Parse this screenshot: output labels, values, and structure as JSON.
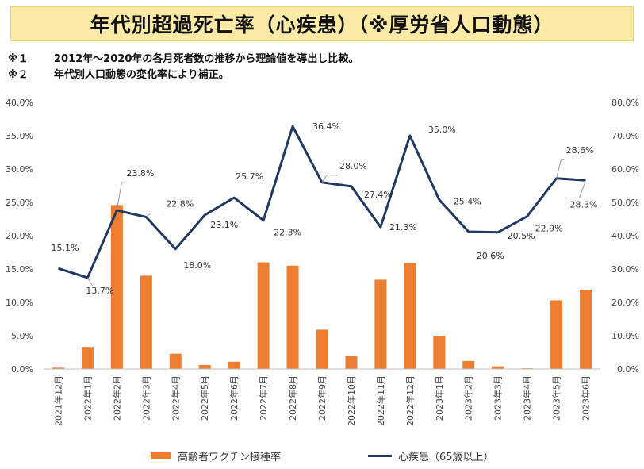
{
  "header": {
    "title": "年代別超過死亡率（心疾患）（※厚労省人口動態）",
    "notes": [
      {
        "mark": "※１",
        "text": "2012年～2020年の各月死者数の推移から理論値を導出し比較。"
      },
      {
        "mark": "※２",
        "text": "年代別人口動態の変化率により補正。"
      }
    ]
  },
  "chart_data": {
    "type": "bar",
    "categories": [
      "2021年12月",
      "2022年1月",
      "2022年2月",
      "2022年3月",
      "2022年4月",
      "2022年5月",
      "2022年6月",
      "2022年7月",
      "2022年8月",
      "2022年9月",
      "2022年10月",
      "2022年11月",
      "2022年12月",
      "2023年1月",
      "2023年2月",
      "2023年3月",
      "2023年4月",
      "2023年5月",
      "2023年6月"
    ],
    "series": [
      {
        "name": "高齢者ワクチン接種率",
        "type": "bar",
        "axis": "left",
        "color": "#ed7d31",
        "values": [
          0.2,
          3.3,
          24.6,
          14.0,
          2.3,
          0.6,
          1.1,
          16.0,
          15.5,
          5.9,
          2.0,
          13.4,
          15.9,
          5.0,
          1.2,
          0.4,
          0.1,
          10.3,
          11.9
        ]
      },
      {
        "name": "心疾患（65歳以上）",
        "type": "line",
        "axis": "right",
        "color": "#203864",
        "values": [
          30.2,
          27.4,
          47.6,
          45.6,
          36.0,
          46.2,
          51.4,
          44.6,
          72.8,
          56.0,
          54.8,
          42.6,
          70.0,
          50.8,
          41.2,
          41.0,
          45.8,
          57.2,
          56.6
        ]
      }
    ],
    "data_labels": [
      "15.1%",
      "13.7%",
      "23.8%",
      "22.8%",
      "18.0%",
      "23.1%",
      "25.7%",
      "22.3%",
      "36.4%",
      "28.0%",
      "27.4%",
      "21.3%",
      "35.0%",
      "25.4%",
      "20.6%",
      "20.5%",
      "22.9%",
      "28.6%",
      "28.3%"
    ],
    "ylim": [
      0,
      40
    ],
    "y2lim": [
      0,
      80
    ],
    "yticks": [
      "0.0%",
      "5.0%",
      "10.0%",
      "15.0%",
      "20.0%",
      "25.0%",
      "30.0%",
      "35.0%",
      "40.0%"
    ],
    "y2ticks": [
      "0.0%",
      "10.0%",
      "20.0%",
      "30.0%",
      "40.0%",
      "50.0%",
      "60.0%",
      "70.0%",
      "80.0%"
    ],
    "grid": false,
    "legend": "bottom"
  }
}
